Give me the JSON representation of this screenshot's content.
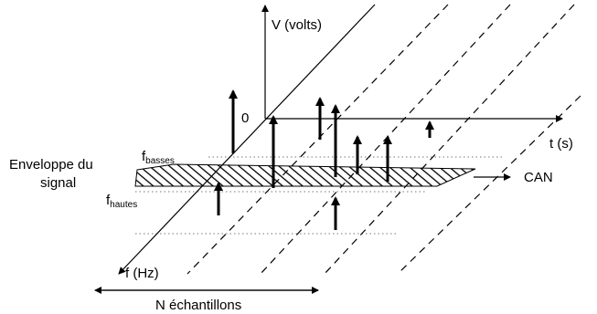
{
  "diagram": {
    "axes": {
      "voltage_label": "V (volts)",
      "time_label": "t (s)",
      "frequency_label": "f (Hz)",
      "origin_label": "0"
    },
    "signal_envelope": {
      "label_line1": "Enveloppe du",
      "label_line2": "signal"
    },
    "band_limits": {
      "low_prefix": "f",
      "low_subscript": "basses",
      "high_prefix": "f",
      "high_subscript": "hautes"
    },
    "converter_label": "CAN",
    "samples_label": "N échantillons",
    "colors": {
      "stroke": "#000000",
      "background": "#ffffff",
      "dotted_guides": "#777777"
    }
  }
}
